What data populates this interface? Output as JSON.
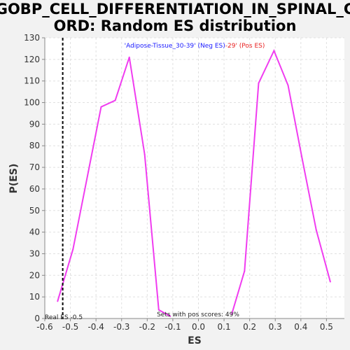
{
  "title_line1": "GOBP_CELL_DIFFERENTIATION_IN_SPINAL_C",
  "title_line2": "ORD: Random ES distribution",
  "legend": {
    "neg_text": "'Adipose-Tissue_30-39' (Neg ES)",
    "pos_text": "-29' (Pos ES)",
    "neg_color": "#1a1aff",
    "pos_color": "#e82020"
  },
  "annotations": {
    "real_es": "Real ES -0.5",
    "pos_scores": "Sets with pos scores: 49%"
  },
  "colors": {
    "line": "#f03cf0",
    "real_es_line": "#000000",
    "grid": "#e0e0e0",
    "plot_bg": "#ffffff"
  },
  "chart_data": {
    "type": "line",
    "xlabel": "ES",
    "ylabel": "P(ES)",
    "xlim": [
      -0.6,
      0.57
    ],
    "ylim": [
      0,
      130
    ],
    "x_ticks": [
      -0.6,
      -0.5,
      -0.4,
      -0.3,
      -0.2,
      -0.1,
      0.0,
      0.1,
      0.2,
      0.3,
      0.4,
      0.5
    ],
    "x_tick_labels": [
      "-0.6",
      "-0.5",
      "-0.4",
      "-0.3",
      "-0.2",
      "-0.1",
      "0.0",
      "0.1",
      "0.2",
      "0.3",
      "0.4",
      "0.5"
    ],
    "y_ticks": [
      0,
      10,
      20,
      30,
      40,
      50,
      60,
      70,
      80,
      90,
      100,
      110,
      120,
      130
    ],
    "y_tick_labels": [
      "0",
      "10",
      "20",
      "30",
      "40",
      "50",
      "60",
      "70",
      "80",
      "90",
      "100",
      "110",
      "120",
      "130"
    ],
    "grid": true,
    "real_es_x": -0.53,
    "series": [
      {
        "neg_branch": {
          "x": [
            -0.55,
            -0.49,
            -0.43,
            -0.38,
            -0.325,
            -0.27,
            -0.21,
            -0.155,
            -0.11
          ],
          "y": [
            8,
            32,
            68,
            98,
            101,
            121,
            76,
            4,
            1
          ]
        },
        "pos_branch": {
          "x": [
            0.13,
            0.18,
            0.235,
            0.295,
            0.35,
            0.405,
            0.46,
            0.515
          ],
          "y": [
            2,
            22,
            109,
            124,
            108,
            74,
            41,
            17
          ]
        }
      }
    ]
  }
}
